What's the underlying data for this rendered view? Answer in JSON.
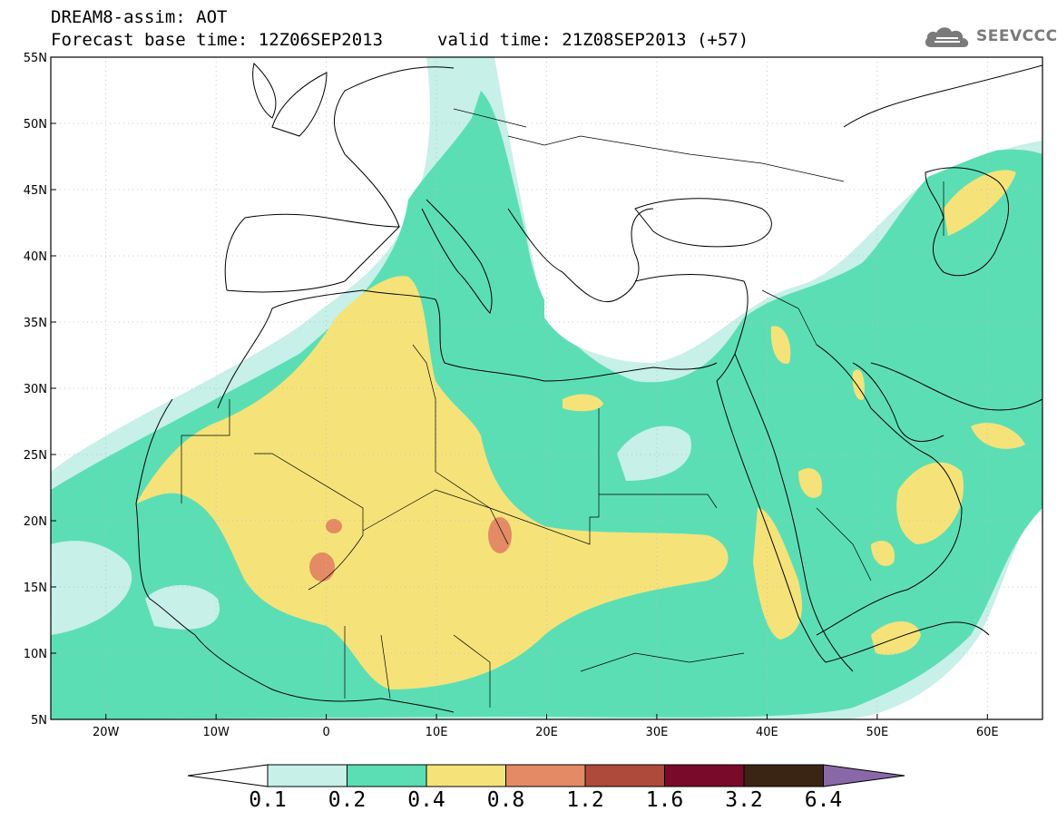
{
  "header": {
    "title": "DREAM8-assim: AOT",
    "base_time": "Forecast base time: 12Z06SEP2013",
    "valid_time": "valid time: 21Z08SEP2013 (+57)"
  },
  "logo": {
    "text": "SEEVCCC",
    "icon": "cloud-icon"
  },
  "map": {
    "lon_range": [
      -25,
      65
    ],
    "lat_range": [
      5,
      55
    ],
    "lon_ticks": [
      {
        "lon": -20,
        "label": "20W"
      },
      {
        "lon": -10,
        "label": "10W"
      },
      {
        "lon": 0,
        "label": "0"
      },
      {
        "lon": 10,
        "label": "10E"
      },
      {
        "lon": 20,
        "label": "20E"
      },
      {
        "lon": 30,
        "label": "30E"
      },
      {
        "lon": 40,
        "label": "40E"
      },
      {
        "lon": 50,
        "label": "50E"
      },
      {
        "lon": 60,
        "label": "60E"
      }
    ],
    "lat_ticks": [
      {
        "lat": 5,
        "label": "5N"
      },
      {
        "lat": 10,
        "label": "10N"
      },
      {
        "lat": 15,
        "label": "15N"
      },
      {
        "lat": 20,
        "label": "20N"
      },
      {
        "lat": 25,
        "label": "25N"
      },
      {
        "lat": 30,
        "label": "30N"
      },
      {
        "lat": 35,
        "label": "35N"
      },
      {
        "lat": 40,
        "label": "40N"
      },
      {
        "lat": 45,
        "label": "45N"
      },
      {
        "lat": 50,
        "label": "50N"
      },
      {
        "lat": 55,
        "label": "55N"
      }
    ],
    "grid": "dotted",
    "field": "Aerosol optical thickness"
  },
  "colorbar": {
    "levels": [
      "0.1",
      "0.2",
      "0.4",
      "0.8",
      "1.2",
      "1.6",
      "3.2",
      "6.4"
    ],
    "colors": [
      "#ffffff",
      "#c6f0e8",
      "#5cdeb4",
      "#f5e37a",
      "#e48a64",
      "#ae4a3a",
      "#7a0a2a",
      "#3a2414",
      "#8a68a8"
    ]
  },
  "colors": {
    "aot_0_1": "#c6f0e8",
    "aot_0_2": "#5cdeb4",
    "aot_0_4": "#f5e37a",
    "aot_0_8": "#e48a64",
    "coast": "#000000"
  }
}
